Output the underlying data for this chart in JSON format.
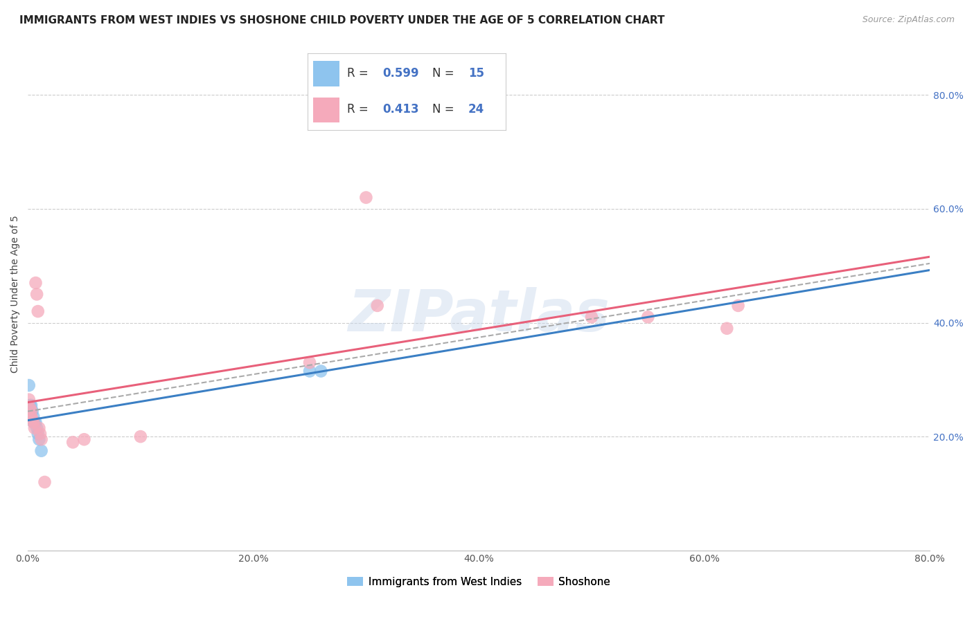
{
  "title": "IMMIGRANTS FROM WEST INDIES VS SHOSHONE CHILD POVERTY UNDER THE AGE OF 5 CORRELATION CHART",
  "source": "Source: ZipAtlas.com",
  "ylabel": "Child Poverty Under the Age of 5",
  "xlim": [
    0.0,
    0.8
  ],
  "ylim": [
    0.0,
    0.9
  ],
  "x_ticks": [
    0.0,
    0.2,
    0.4,
    0.6,
    0.8
  ],
  "y_ticks_right": [
    0.2,
    0.4,
    0.6,
    0.8
  ],
  "x_tick_labels": [
    "0.0%",
    "20.0%",
    "40.0%",
    "60.0%",
    "80.0%"
  ],
  "y_tick_labels_right": [
    "20.0%",
    "40.0%",
    "60.0%",
    "80.0%"
  ],
  "legend_labels": [
    "Immigrants from West Indies",
    "Shoshone"
  ],
  "legend_r_blue": "0.599",
  "legend_n_blue": "15",
  "legend_r_pink": "0.413",
  "legend_n_pink": "24",
  "watermark": "ZIPatlas",
  "blue_color": "#8EC4EE",
  "pink_color": "#F5AABB",
  "blue_line_color": "#3B7FC4",
  "pink_line_color": "#E8607A",
  "dashed_line_color": "#AAAAAA",
  "grid_color": "#CCCCCC",
  "background_color": "#FFFFFF",
  "west_indies_x": [
    0.001,
    0.002,
    0.003,
    0.003,
    0.004,
    0.005,
    0.005,
    0.006,
    0.007,
    0.008,
    0.009,
    0.01,
    0.012,
    0.25,
    0.26
  ],
  "west_indies_y": [
    0.29,
    0.255,
    0.255,
    0.245,
    0.245,
    0.235,
    0.225,
    0.225,
    0.225,
    0.215,
    0.205,
    0.195,
    0.175,
    0.315,
    0.315
  ],
  "shoshone_x": [
    0.001,
    0.002,
    0.003,
    0.003,
    0.004,
    0.005,
    0.006,
    0.007,
    0.008,
    0.009,
    0.01,
    0.011,
    0.012,
    0.015,
    0.04,
    0.05,
    0.1,
    0.25,
    0.55,
    0.62,
    0.63,
    0.3,
    0.31,
    0.5
  ],
  "shoshone_y": [
    0.265,
    0.25,
    0.245,
    0.235,
    0.23,
    0.225,
    0.215,
    0.47,
    0.45,
    0.42,
    0.215,
    0.205,
    0.195,
    0.12,
    0.19,
    0.195,
    0.2,
    0.33,
    0.41,
    0.39,
    0.43,
    0.62,
    0.43,
    0.41
  ],
  "title_fontsize": 11,
  "source_fontsize": 9,
  "label_fontsize": 10,
  "tick_fontsize": 10,
  "watermark_fontsize": 60,
  "watermark_color": "#C8D8EC",
  "watermark_alpha": 0.45,
  "scatter_size": 180
}
